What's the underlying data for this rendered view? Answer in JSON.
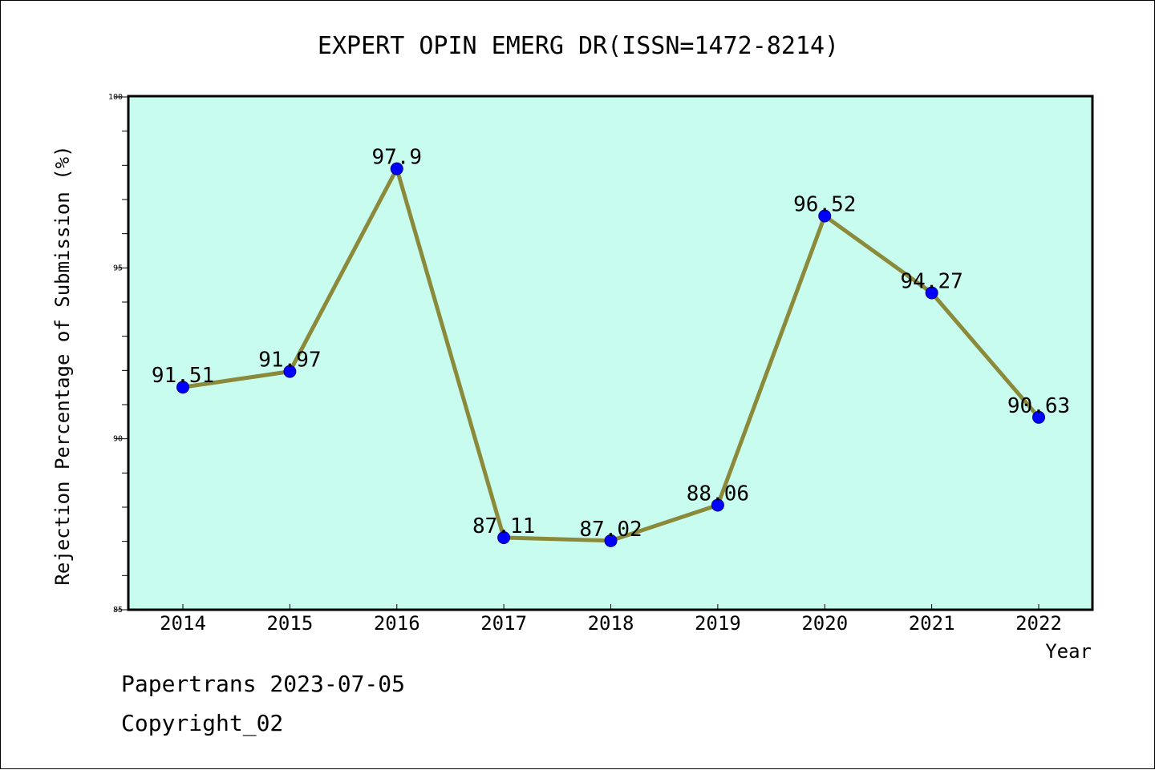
{
  "chart_data": {
    "type": "line",
    "title": "EXPERT OPIN EMERG DR(ISSN=1472-8214)",
    "xlabel": "Year",
    "ylabel": "Rejection Percentage of Submission (%)",
    "categories": [
      "2014",
      "2015",
      "2016",
      "2017",
      "2018",
      "2019",
      "2020",
      "2021",
      "2022"
    ],
    "series": [
      {
        "values": [
          91.51,
          91.97,
          97.9,
          87.11,
          87.02,
          88.06,
          96.52,
          94.27,
          90.63
        ],
        "labels": [
          "91.51",
          "91.97",
          "97.9",
          "87.11",
          "87.02",
          "88.06",
          "96.52",
          "94.27",
          "90.63"
        ]
      }
    ],
    "ylim": [
      85,
      100
    ],
    "yticks": [
      85,
      90,
      95,
      100
    ],
    "grid": false,
    "colors": {
      "plot_background": "#c8fcee",
      "line": "#8b8a3a",
      "marker": "#0000ff"
    }
  },
  "footer": {
    "line1": "Papertrans 2023-07-05",
    "line2": "Copyright_02"
  }
}
